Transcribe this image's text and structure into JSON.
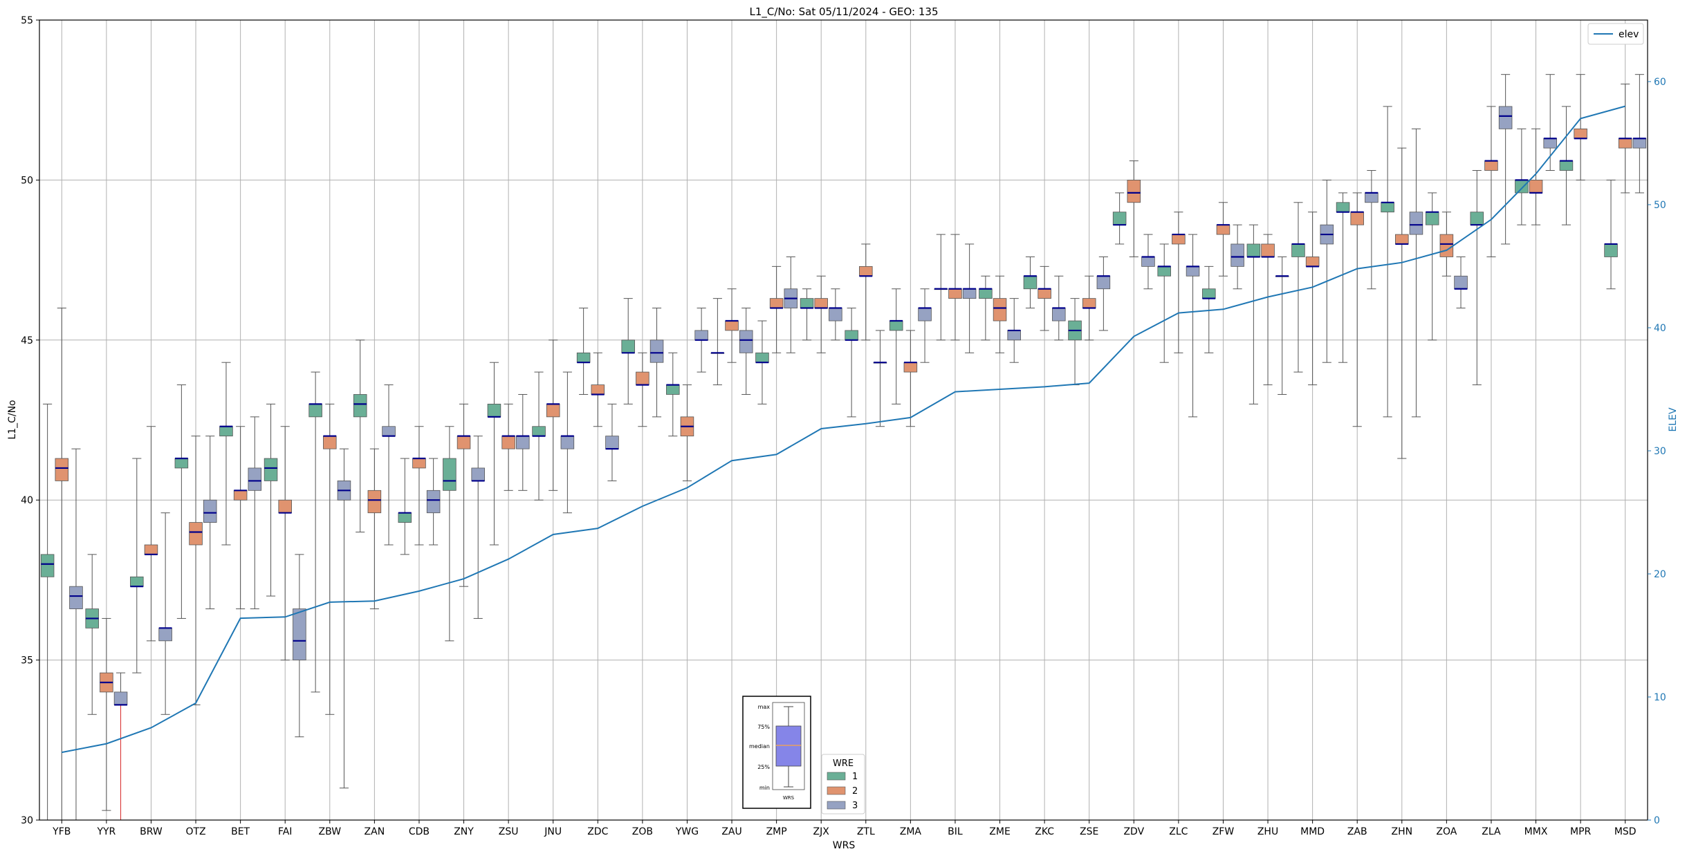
{
  "chart_data": {
    "type": "box",
    "title": "L1_C/No: Sat 05/11/2024 - GEO: 135",
    "xlabel": "WRS",
    "ylabel": "L1_C/No",
    "y2label": "ELEV",
    "ylim": [
      30,
      55
    ],
    "y2lim": [
      0,
      65
    ],
    "yticks": [
      30,
      35,
      40,
      45,
      50,
      55
    ],
    "y2ticks": [
      0,
      10,
      20,
      30,
      40,
      50,
      60
    ],
    "grid": true,
    "categories": [
      "YFB",
      "YYR",
      "BRW",
      "OTZ",
      "BET",
      "FAI",
      "ZBW",
      "ZAN",
      "CDB",
      "ZNY",
      "ZSU",
      "JNU",
      "ZDC",
      "ZOB",
      "YWG",
      "ZAU",
      "ZMP",
      "ZJX",
      "ZTL",
      "ZMA",
      "BIL",
      "ZME",
      "ZKC",
      "ZSE",
      "ZDV",
      "ZLC",
      "ZFW",
      "ZHU",
      "MMD",
      "ZAB",
      "ZHN",
      "ZOA",
      "ZLA",
      "MMX",
      "MPR",
      "MSD"
    ],
    "wre_legend": {
      "title": "WRE",
      "entries": [
        {
          "label": "1",
          "color": "#6aaf96"
        },
        {
          "label": "2",
          "color": "#e0936f"
        },
        {
          "label": "3",
          "color": "#96a2c2"
        }
      ]
    },
    "elev_legend": {
      "label": "elev",
      "color": "#1f77b4"
    },
    "key_box": {
      "labels": [
        "max",
        "75%",
        "median",
        "25%",
        "min"
      ],
      "xtick": "WRS"
    },
    "elev_values": [
      5.5,
      6.2,
      7.5,
      9.5,
      16.4,
      16.5,
      17.7,
      17.8,
      18.6,
      19.6,
      21.2,
      23.2,
      23.7,
      25.5,
      27.0,
      29.2,
      29.7,
      31.8,
      32.2,
      32.7,
      34.8,
      35.0,
      35.2,
      35.5,
      39.3,
      41.2,
      41.5,
      42.5,
      43.3,
      44.8,
      45.3,
      46.3,
      48.8,
      52.5,
      57.0,
      58.0
    ],
    "boxes": [
      {
        "station": "YFB",
        "wre": 1,
        "min": 30.0,
        "q1": 37.6,
        "median": 38.0,
        "q3": 38.3,
        "max": 43.0
      },
      {
        "station": "YFB",
        "wre": 2,
        "min": 30.0,
        "q1": 40.6,
        "median": 41.0,
        "q3": 41.3,
        "max": 46.0
      },
      {
        "station": "YFB",
        "wre": 3,
        "min": 30.0,
        "q1": 36.6,
        "median": 37.0,
        "q3": 37.3,
        "max": 41.6
      },
      {
        "station": "YYR",
        "wre": 1,
        "min": 33.3,
        "q1": 36.0,
        "median": 36.3,
        "q3": 36.6,
        "max": 38.3
      },
      {
        "station": "YYR",
        "wre": 2,
        "min": 30.3,
        "q1": 34.0,
        "median": 34.3,
        "q3": 34.6,
        "max": 36.3
      },
      {
        "station": "YYR",
        "wre": 3,
        "min": 30.0,
        "q1": 33.6,
        "median": 33.6,
        "q3": 34.0,
        "max": 34.6
      },
      {
        "station": "BRW",
        "wre": 1,
        "min": 34.6,
        "q1": 37.3,
        "median": 37.3,
        "q3": 37.6,
        "max": 41.3
      },
      {
        "station": "BRW",
        "wre": 2,
        "min": 35.6,
        "q1": 38.3,
        "median": 38.3,
        "q3": 38.6,
        "max": 42.3
      },
      {
        "station": "BRW",
        "wre": 3,
        "min": 33.3,
        "q1": 35.6,
        "median": 36.0,
        "q3": 36.0,
        "max": 39.6
      },
      {
        "station": "OTZ",
        "wre": 1,
        "min": 36.3,
        "q1": 41.0,
        "median": 41.3,
        "q3": 41.3,
        "max": 43.6
      },
      {
        "station": "OTZ",
        "wre": 2,
        "min": 33.6,
        "q1": 38.6,
        "median": 39.0,
        "q3": 39.3,
        "max": 42.0
      },
      {
        "station": "OTZ",
        "wre": 3,
        "min": 36.6,
        "q1": 39.3,
        "median": 39.6,
        "q3": 40.0,
        "max": 42.0
      },
      {
        "station": "BET",
        "wre": 1,
        "min": 38.6,
        "q1": 42.0,
        "median": 42.3,
        "q3": 42.3,
        "max": 44.3
      },
      {
        "station": "BET",
        "wre": 2,
        "min": 36.6,
        "q1": 40.0,
        "median": 40.3,
        "q3": 40.3,
        "max": 42.3
      },
      {
        "station": "BET",
        "wre": 3,
        "min": 36.6,
        "q1": 40.3,
        "median": 40.6,
        "q3": 41.0,
        "max": 42.6
      },
      {
        "station": "FAI",
        "wre": 1,
        "min": 37.0,
        "q1": 40.6,
        "median": 41.0,
        "q3": 41.3,
        "max": 43.0
      },
      {
        "station": "FAI",
        "wre": 2,
        "min": 35.0,
        "q1": 39.6,
        "median": 39.6,
        "q3": 40.0,
        "max": 42.3
      },
      {
        "station": "FAI",
        "wre": 3,
        "min": 32.6,
        "q1": 35.0,
        "median": 35.6,
        "q3": 36.6,
        "max": 38.3
      },
      {
        "station": "ZBW",
        "wre": 1,
        "min": 34.0,
        "q1": 42.6,
        "median": 43.0,
        "q3": 43.0,
        "max": 44.0
      },
      {
        "station": "ZBW",
        "wre": 2,
        "min": 33.3,
        "q1": 41.6,
        "median": 42.0,
        "q3": 42.0,
        "max": 43.0
      },
      {
        "station": "ZBW",
        "wre": 3,
        "min": 31.0,
        "q1": 40.0,
        "median": 40.3,
        "q3": 40.6,
        "max": 41.6
      },
      {
        "station": "ZAN",
        "wre": 1,
        "min": 39.0,
        "q1": 42.6,
        "median": 43.0,
        "q3": 43.3,
        "max": 45.0
      },
      {
        "station": "ZAN",
        "wre": 2,
        "min": 36.6,
        "q1": 39.6,
        "median": 40.0,
        "q3": 40.3,
        "max": 41.6
      },
      {
        "station": "ZAN",
        "wre": 3,
        "min": 38.6,
        "q1": 42.0,
        "median": 42.0,
        "q3": 42.3,
        "max": 43.6
      },
      {
        "station": "CDB",
        "wre": 1,
        "min": 38.3,
        "q1": 39.3,
        "median": 39.6,
        "q3": 39.6,
        "max": 41.3
      },
      {
        "station": "CDB",
        "wre": 2,
        "min": 38.6,
        "q1": 41.0,
        "median": 41.3,
        "q3": 41.3,
        "max": 42.3
      },
      {
        "station": "CDB",
        "wre": 3,
        "min": 38.6,
        "q1": 39.6,
        "median": 40.0,
        "q3": 40.3,
        "max": 41.3
      },
      {
        "station": "ZNY",
        "wre": 1,
        "min": 35.6,
        "q1": 40.3,
        "median": 40.6,
        "q3": 41.3,
        "max": 42.3
      },
      {
        "station": "ZNY",
        "wre": 2,
        "min": 37.3,
        "q1": 41.6,
        "median": 42.0,
        "q3": 42.0,
        "max": 43.0
      },
      {
        "station": "ZNY",
        "wre": 3,
        "min": 36.3,
        "q1": 40.6,
        "median": 40.6,
        "q3": 41.0,
        "max": 42.0
      },
      {
        "station": "ZSU",
        "wre": 1,
        "min": 38.6,
        "q1": 42.6,
        "median": 42.6,
        "q3": 43.0,
        "max": 44.3
      },
      {
        "station": "ZSU",
        "wre": 2,
        "min": 40.3,
        "q1": 41.6,
        "median": 42.0,
        "q3": 42.0,
        "max": 43.0
      },
      {
        "station": "ZSU",
        "wre": 3,
        "min": 40.3,
        "q1": 41.6,
        "median": 42.0,
        "q3": 42.0,
        "max": 43.3
      },
      {
        "station": "JNU",
        "wre": 1,
        "min": 40.0,
        "q1": 42.0,
        "median": 42.0,
        "q3": 42.3,
        "max": 44.0
      },
      {
        "station": "JNU",
        "wre": 2,
        "min": 40.3,
        "q1": 42.6,
        "median": 43.0,
        "q3": 43.0,
        "max": 45.0
      },
      {
        "station": "JNU",
        "wre": 3,
        "min": 39.6,
        "q1": 41.6,
        "median": 42.0,
        "q3": 42.0,
        "max": 44.0
      },
      {
        "station": "ZDC",
        "wre": 1,
        "min": 43.3,
        "q1": 44.3,
        "median": 44.3,
        "q3": 44.6,
        "max": 46.0
      },
      {
        "station": "ZDC",
        "wre": 2,
        "min": 42.3,
        "q1": 43.3,
        "median": 43.3,
        "q3": 43.6,
        "max": 44.6
      },
      {
        "station": "ZDC",
        "wre": 3,
        "min": 40.6,
        "q1": 41.6,
        "median": 41.6,
        "q3": 42.0,
        "max": 43.0
      },
      {
        "station": "ZOB",
        "wre": 1,
        "min": 43.0,
        "q1": 44.6,
        "median": 44.6,
        "q3": 45.0,
        "max": 46.3
      },
      {
        "station": "ZOB",
        "wre": 2,
        "min": 42.3,
        "q1": 43.6,
        "median": 43.6,
        "q3": 44.0,
        "max": 44.6
      },
      {
        "station": "ZOB",
        "wre": 3,
        "min": 42.6,
        "q1": 44.3,
        "median": 44.6,
        "q3": 45.0,
        "max": 46.0
      },
      {
        "station": "YWG",
        "wre": 1,
        "min": 42.0,
        "q1": 43.3,
        "median": 43.6,
        "q3": 43.6,
        "max": 44.6
      },
      {
        "station": "YWG",
        "wre": 2,
        "min": 40.6,
        "q1": 42.0,
        "median": 42.3,
        "q3": 42.6,
        "max": 43.6
      },
      {
        "station": "YWG",
        "wre": 3,
        "min": 44.0,
        "q1": 45.0,
        "median": 45.0,
        "q3": 45.3,
        "max": 46.0
      },
      {
        "station": "ZAU",
        "wre": 1,
        "min": 43.6,
        "q1": 44.6,
        "median": 44.6,
        "q3": 44.6,
        "max": 46.3
      },
      {
        "station": "ZAU",
        "wre": 2,
        "min": 44.3,
        "q1": 45.3,
        "median": 45.6,
        "q3": 45.6,
        "max": 46.6
      },
      {
        "station": "ZAU",
        "wre": 3,
        "min": 43.3,
        "q1": 44.6,
        "median": 45.0,
        "q3": 45.3,
        "max": 46.0
      },
      {
        "station": "ZMP",
        "wre": 1,
        "min": 43.0,
        "q1": 44.3,
        "median": 44.3,
        "q3": 44.6,
        "max": 45.6
      },
      {
        "station": "ZMP",
        "wre": 2,
        "min": 44.6,
        "q1": 46.0,
        "median": 46.0,
        "q3": 46.3,
        "max": 47.3
      },
      {
        "station": "ZMP",
        "wre": 3,
        "min": 44.6,
        "q1": 46.0,
        "median": 46.3,
        "q3": 46.6,
        "max": 47.6
      },
      {
        "station": "ZJX",
        "wre": 1,
        "min": 45.0,
        "q1": 46.0,
        "median": 46.0,
        "q3": 46.3,
        "max": 46.6
      },
      {
        "station": "ZJX",
        "wre": 2,
        "min": 44.6,
        "q1": 46.0,
        "median": 46.0,
        "q3": 46.3,
        "max": 47.0
      },
      {
        "station": "ZJX",
        "wre": 3,
        "min": 45.0,
        "q1": 45.6,
        "median": 46.0,
        "q3": 46.0,
        "max": 46.6
      },
      {
        "station": "ZTL",
        "wre": 1,
        "min": 42.6,
        "q1": 45.0,
        "median": 45.0,
        "q3": 45.3,
        "max": 46.0
      },
      {
        "station": "ZTL",
        "wre": 2,
        "min": 45.0,
        "q1": 47.0,
        "median": 47.0,
        "q3": 47.3,
        "max": 48.0
      },
      {
        "station": "ZTL",
        "wre": 3,
        "min": 42.3,
        "q1": 44.3,
        "median": 44.3,
        "q3": 44.3,
        "max": 45.3
      },
      {
        "station": "ZMA",
        "wre": 1,
        "min": 43.0,
        "q1": 45.3,
        "median": 45.6,
        "q3": 45.6,
        "max": 46.6
      },
      {
        "station": "ZMA",
        "wre": 2,
        "min": 42.3,
        "q1": 44.0,
        "median": 44.3,
        "q3": 44.3,
        "max": 45.3
      },
      {
        "station": "ZMA",
        "wre": 3,
        "min": 44.3,
        "q1": 45.6,
        "median": 46.0,
        "q3": 46.0,
        "max": 46.6
      },
      {
        "station": "BIL",
        "wre": 1,
        "min": 45.0,
        "q1": 46.6,
        "median": 46.6,
        "q3": 46.6,
        "max": 48.3
      },
      {
        "station": "BIL",
        "wre": 2,
        "min": 45.0,
        "q1": 46.3,
        "median": 46.6,
        "q3": 46.6,
        "max": 48.3
      },
      {
        "station": "BIL",
        "wre": 3,
        "min": 44.6,
        "q1": 46.3,
        "median": 46.6,
        "q3": 46.6,
        "max": 48.0
      },
      {
        "station": "ZME",
        "wre": 1,
        "min": 45.0,
        "q1": 46.3,
        "median": 46.6,
        "q3": 46.6,
        "max": 47.0
      },
      {
        "station": "ZME",
        "wre": 2,
        "min": 44.6,
        "q1": 45.6,
        "median": 46.0,
        "q3": 46.3,
        "max": 47.0
      },
      {
        "station": "ZME",
        "wre": 3,
        "min": 44.3,
        "q1": 45.0,
        "median": 45.3,
        "q3": 45.3,
        "max": 46.3
      },
      {
        "station": "ZKC",
        "wre": 1,
        "min": 46.0,
        "q1": 46.6,
        "median": 47.0,
        "q3": 47.0,
        "max": 47.6
      },
      {
        "station": "ZKC",
        "wre": 2,
        "min": 45.3,
        "q1": 46.3,
        "median": 46.6,
        "q3": 46.6,
        "max": 47.3
      },
      {
        "station": "ZKC",
        "wre": 3,
        "min": 45.0,
        "q1": 45.6,
        "median": 46.0,
        "q3": 46.0,
        "max": 47.0
      },
      {
        "station": "ZSE",
        "wre": 1,
        "min": 43.6,
        "q1": 45.0,
        "median": 45.3,
        "q3": 45.6,
        "max": 46.3
      },
      {
        "station": "ZSE",
        "wre": 2,
        "min": 45.0,
        "q1": 46.0,
        "median": 46.0,
        "q3": 46.3,
        "max": 47.0
      },
      {
        "station": "ZSE",
        "wre": 3,
        "min": 45.3,
        "q1": 46.6,
        "median": 47.0,
        "q3": 47.0,
        "max": 47.6
      },
      {
        "station": "ZDV",
        "wre": 1,
        "min": 48.0,
        "q1": 48.6,
        "median": 48.6,
        "q3": 49.0,
        "max": 49.6
      },
      {
        "station": "ZDV",
        "wre": 2,
        "min": 47.6,
        "q1": 49.3,
        "median": 49.6,
        "q3": 50.0,
        "max": 50.6
      },
      {
        "station": "ZDV",
        "wre": 3,
        "min": 46.6,
        "q1": 47.3,
        "median": 47.6,
        "q3": 47.6,
        "max": 48.3
      },
      {
        "station": "ZLC",
        "wre": 1,
        "min": 44.3,
        "q1": 47.0,
        "median": 47.3,
        "q3": 47.3,
        "max": 48.0
      },
      {
        "station": "ZLC",
        "wre": 2,
        "min": 44.6,
        "q1": 48.0,
        "median": 48.3,
        "q3": 48.3,
        "max": 49.0
      },
      {
        "station": "ZLC",
        "wre": 3,
        "min": 42.6,
        "q1": 47.0,
        "median": 47.3,
        "q3": 47.3,
        "max": 48.3
      },
      {
        "station": "ZFW",
        "wre": 1,
        "min": 44.6,
        "q1": 46.3,
        "median": 46.3,
        "q3": 46.6,
        "max": 47.3
      },
      {
        "station": "ZFW",
        "wre": 2,
        "min": 47.0,
        "q1": 48.3,
        "median": 48.6,
        "q3": 48.6,
        "max": 49.3
      },
      {
        "station": "ZFW",
        "wre": 3,
        "min": 46.6,
        "q1": 47.3,
        "median": 47.6,
        "q3": 48.0,
        "max": 48.6
      },
      {
        "station": "ZHU",
        "wre": 1,
        "min": 43.0,
        "q1": 47.6,
        "median": 47.6,
        "q3": 48.0,
        "max": 48.6
      },
      {
        "station": "ZHU",
        "wre": 2,
        "min": 43.6,
        "q1": 47.6,
        "median": 47.6,
        "q3": 48.0,
        "max": 48.3
      },
      {
        "station": "ZHU",
        "wre": 3,
        "min": 43.3,
        "q1": 47.0,
        "median": 47.0,
        "q3": 47.0,
        "max": 47.6
      },
      {
        "station": "MMD",
        "wre": 1,
        "min": 44.0,
        "q1": 47.6,
        "median": 48.0,
        "q3": 48.0,
        "max": 49.3
      },
      {
        "station": "MMD",
        "wre": 2,
        "min": 43.6,
        "q1": 47.3,
        "median": 47.3,
        "q3": 47.6,
        "max": 49.0
      },
      {
        "station": "MMD",
        "wre": 3,
        "min": 44.3,
        "q1": 48.0,
        "median": 48.3,
        "q3": 48.6,
        "max": 50.0
      },
      {
        "station": "ZAB",
        "wre": 1,
        "min": 44.3,
        "q1": 49.0,
        "median": 49.0,
        "q3": 49.3,
        "max": 49.6
      },
      {
        "station": "ZAB",
        "wre": 2,
        "min": 42.3,
        "q1": 48.6,
        "median": 49.0,
        "q3": 49.0,
        "max": 49.6
      },
      {
        "station": "ZAB",
        "wre": 3,
        "min": 46.6,
        "q1": 49.3,
        "median": 49.6,
        "q3": 49.6,
        "max": 50.3
      },
      {
        "station": "ZHN",
        "wre": 1,
        "min": 42.6,
        "q1": 49.0,
        "median": 49.3,
        "q3": 49.3,
        "max": 52.3
      },
      {
        "station": "ZHN",
        "wre": 2,
        "min": 41.3,
        "q1": 48.0,
        "median": 48.0,
        "q3": 48.3,
        "max": 51.0
      },
      {
        "station": "ZHN",
        "wre": 3,
        "min": 42.6,
        "q1": 48.3,
        "median": 48.6,
        "q3": 49.0,
        "max": 51.6
      },
      {
        "station": "ZOA",
        "wre": 1,
        "min": 45.0,
        "q1": 48.6,
        "median": 49.0,
        "q3": 49.0,
        "max": 49.6
      },
      {
        "station": "ZOA",
        "wre": 2,
        "min": 47.0,
        "q1": 47.6,
        "median": 48.0,
        "q3": 48.3,
        "max": 49.0
      },
      {
        "station": "ZOA",
        "wre": 3,
        "min": 46.0,
        "q1": 46.6,
        "median": 46.6,
        "q3": 47.0,
        "max": 47.6
      },
      {
        "station": "ZLA",
        "wre": 1,
        "min": 43.6,
        "q1": 48.6,
        "median": 48.6,
        "q3": 49.0,
        "max": 50.3
      },
      {
        "station": "ZLA",
        "wre": 2,
        "min": 47.6,
        "q1": 50.3,
        "median": 50.6,
        "q3": 50.6,
        "max": 52.3
      },
      {
        "station": "ZLA",
        "wre": 3,
        "min": 48.0,
        "q1": 51.6,
        "median": 52.0,
        "q3": 52.3,
        "max": 53.3
      },
      {
        "station": "MMX",
        "wre": 1,
        "min": 48.6,
        "q1": 49.6,
        "median": 50.0,
        "q3": 50.0,
        "max": 51.6
      },
      {
        "station": "MMX",
        "wre": 2,
        "min": 48.6,
        "q1": 49.6,
        "median": 49.6,
        "q3": 50.0,
        "max": 51.6
      },
      {
        "station": "MMX",
        "wre": 3,
        "min": 50.3,
        "q1": 51.0,
        "median": 51.3,
        "q3": 51.3,
        "max": 53.3
      },
      {
        "station": "MPR",
        "wre": 1,
        "min": 48.6,
        "q1": 50.3,
        "median": 50.6,
        "q3": 50.6,
        "max": 52.3
      },
      {
        "station": "MPR",
        "wre": 2,
        "min": 50.0,
        "q1": 51.3,
        "median": 51.3,
        "q3": 51.6,
        "max": 53.3
      },
      {
        "station": "MSD",
        "wre": 1,
        "min": 46.6,
        "q1": 47.6,
        "median": 48.0,
        "q3": 48.0,
        "max": 50.0
      },
      {
        "station": "MSD",
        "wre": 2,
        "min": 49.6,
        "q1": 51.0,
        "median": 51.3,
        "q3": 51.3,
        "max": 53.0
      },
      {
        "station": "MSD",
        "wre": 3,
        "min": 49.6,
        "q1": 51.0,
        "median": 51.3,
        "q3": 51.3,
        "max": 53.3
      }
    ]
  }
}
